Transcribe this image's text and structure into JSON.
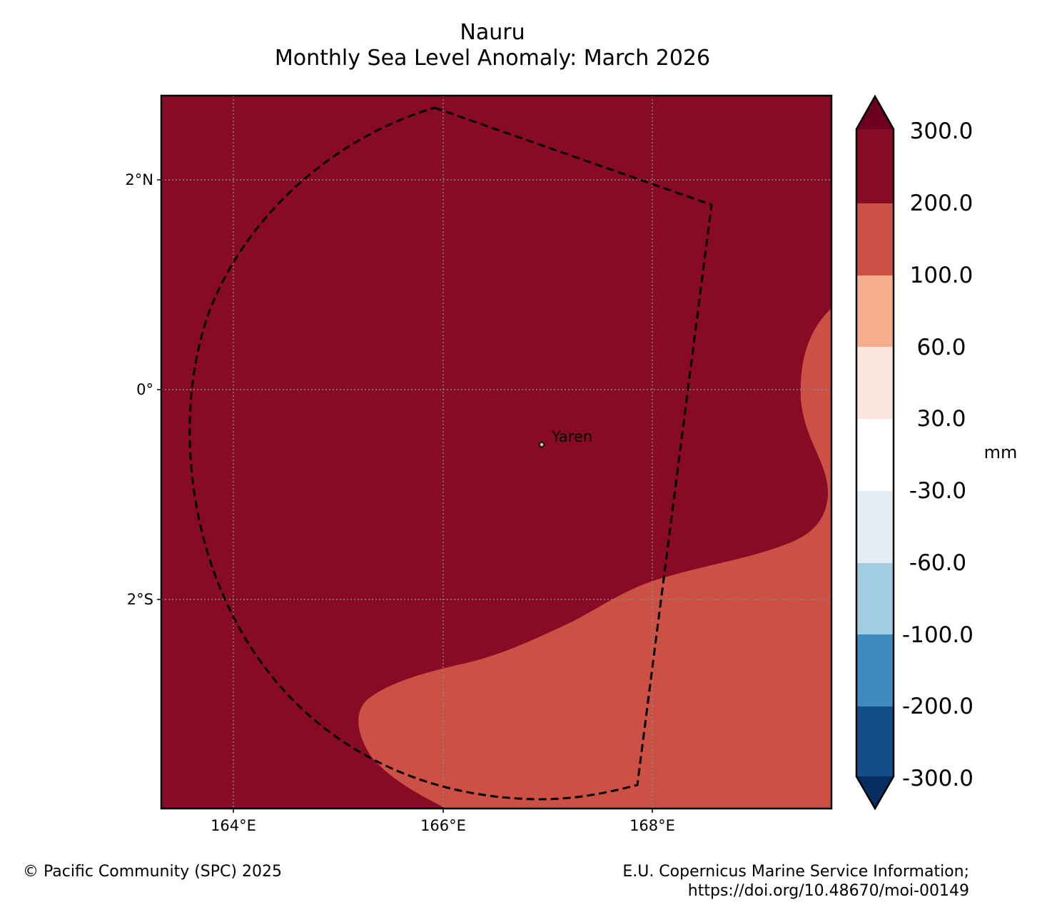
{
  "header": {
    "title": "Nauru",
    "subtitle": "Monthly Sea Level Anomaly: March 2026"
  },
  "map": {
    "longitude_ticks": [
      "164°E",
      "166°E",
      "168°E"
    ],
    "latitude_ticks": [
      "2°N",
      "0°",
      "2°S"
    ],
    "places": [
      {
        "name": "Yaren",
        "marker": "island-outline"
      }
    ],
    "field": {
      "dominant_range_mm": "200.0 to 300.0",
      "dominant_color": "#880b26",
      "secondary_range_mm": "100.0 to 200.0",
      "secondary_color": "#cc5144",
      "secondary_region": "south-east"
    },
    "eez_boundary_style": "dashed",
    "gridlines": true
  },
  "colorbar": {
    "unit": "mm",
    "ticks": [
      "300.0",
      "200.0",
      "100.0",
      "60.0",
      "30.0",
      "-30.0",
      "-60.0",
      "-100.0",
      "-200.0",
      "-300.0"
    ],
    "colors": {
      "over": "#6d0020",
      "bands_top_to_bottom": [
        "#880b26",
        "#cc5144",
        "#f5ad8c",
        "#fbe6dc",
        "#ffffff",
        "#e4ecf4",
        "#a2cce2",
        "#3e8bbf",
        "#144c89"
      ],
      "under": "#062e61"
    }
  },
  "footer": {
    "copyright": "© Pacific Community (SPC) 2025",
    "source_line1": "E.U. Copernicus Marine Service Information;",
    "source_line2": "https://doi.org/10.48670/moi-00149"
  }
}
